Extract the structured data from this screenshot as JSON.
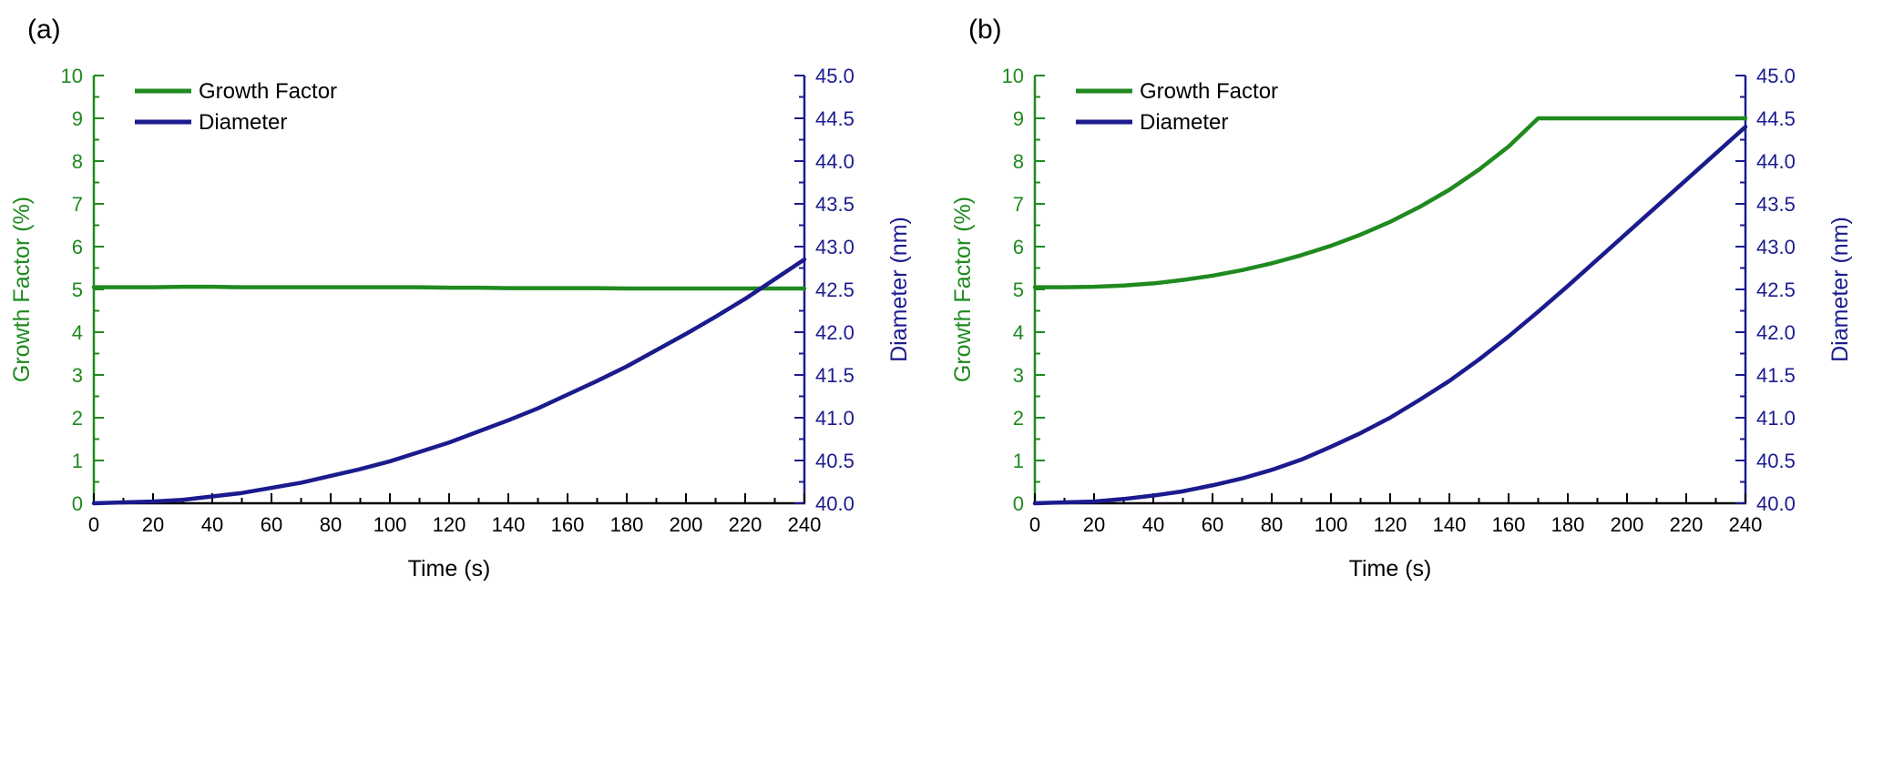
{
  "figure": {
    "background": "#ffffff"
  },
  "chart_data": [
    {
      "type": "line",
      "panel_label": "(a)",
      "xlabel": "Time (s)",
      "x_range": [
        0,
        240
      ],
      "x_tick_step": 20,
      "x_minor_step": 10,
      "x_axis_color": "#000000",
      "left_axis": {
        "label": "Growth Factor (%)",
        "range": [
          0,
          10
        ],
        "tick_step": 1,
        "minor_step": 0.5,
        "decimals": 0,
        "color": "#1f8a1f"
      },
      "right_axis": {
        "label": "Diameter (nm)",
        "range": [
          40,
          45
        ],
        "tick_step": 0.5,
        "minor_step": 0.25,
        "decimals": 1,
        "color": "#1b1b8e"
      },
      "x": [
        0,
        10,
        20,
        30,
        40,
        50,
        60,
        70,
        80,
        90,
        100,
        110,
        120,
        130,
        140,
        150,
        160,
        170,
        180,
        190,
        200,
        210,
        220,
        230,
        240
      ],
      "series": [
        {
          "name": "Growth Factor",
          "axis": "left",
          "color": "#1f8a1f",
          "values": [
            5.05,
            5.05,
            5.05,
            5.06,
            5.06,
            5.05,
            5.05,
            5.05,
            5.05,
            5.05,
            5.05,
            5.05,
            5.04,
            5.04,
            5.03,
            5.03,
            5.03,
            5.03,
            5.02,
            5.02,
            5.02,
            5.02,
            5.02,
            5.02,
            5.02
          ]
        },
        {
          "name": "Diameter",
          "axis": "right",
          "color": "#1b1b8e",
          "values": [
            40.0,
            40.01,
            40.02,
            40.04,
            40.08,
            40.12,
            40.18,
            40.24,
            40.32,
            40.4,
            40.49,
            40.6,
            40.71,
            40.84,
            40.97,
            41.11,
            41.27,
            41.43,
            41.6,
            41.79,
            41.98,
            42.18,
            42.39,
            42.62,
            42.85
          ]
        }
      ],
      "legend": {
        "items": [
          "Growth Factor",
          "Diameter"
        ],
        "position": "top-left"
      }
    },
    {
      "type": "line",
      "panel_label": "(b)",
      "xlabel": "Time (s)",
      "x_range": [
        0,
        240
      ],
      "x_tick_step": 20,
      "x_minor_step": 10,
      "x_axis_color": "#000000",
      "left_axis": {
        "label": "Growth Factor (%)",
        "range": [
          0,
          10
        ],
        "tick_step": 1,
        "minor_step": 0.5,
        "decimals": 0,
        "color": "#1f8a1f"
      },
      "right_axis": {
        "label": "Diameter (nm)",
        "range": [
          40,
          45
        ],
        "tick_step": 0.5,
        "minor_step": 0.25,
        "decimals": 1,
        "color": "#1b1b8e"
      },
      "x": [
        0,
        10,
        20,
        30,
        40,
        50,
        60,
        70,
        80,
        90,
        100,
        110,
        120,
        130,
        140,
        150,
        160,
        170,
        180,
        190,
        200,
        210,
        220,
        230,
        240
      ],
      "series": [
        {
          "name": "Growth Factor",
          "axis": "left",
          "color": "#1f8a1f",
          "values": [
            5.05,
            5.05,
            5.06,
            5.09,
            5.14,
            5.22,
            5.32,
            5.45,
            5.61,
            5.8,
            6.02,
            6.28,
            6.58,
            6.93,
            7.33,
            7.8,
            8.34,
            9.0,
            9.0,
            9.0,
            9.0,
            9.0,
            9.0,
            9.0,
            9.0
          ]
        },
        {
          "name": "Diameter",
          "axis": "right",
          "color": "#1b1b8e",
          "values": [
            40.0,
            40.01,
            40.02,
            40.05,
            40.09,
            40.14,
            40.21,
            40.29,
            40.39,
            40.51,
            40.66,
            40.82,
            41.0,
            41.21,
            41.43,
            41.68,
            41.95,
            42.24,
            42.54,
            42.85,
            43.16,
            43.47,
            43.78,
            44.09,
            44.4
          ]
        }
      ],
      "legend": {
        "items": [
          "Growth Factor",
          "Diameter"
        ],
        "position": "top-left"
      }
    }
  ]
}
